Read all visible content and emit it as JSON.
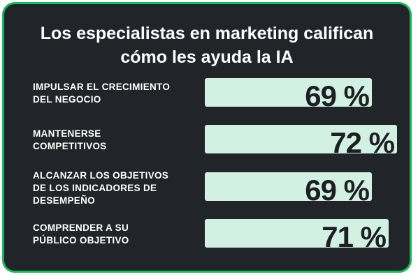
{
  "title_lines": [
    "Los especialistas en marketing califican",
    "cómo les ayuda la IA"
  ],
  "colors": {
    "background": "#212529",
    "border": "#19b95b",
    "bar": "#d2f1e3",
    "value_text": "#1d1f23"
  },
  "chart_data": {
    "type": "bar",
    "orientation": "horizontal",
    "title": "Los especialistas en marketing califican cómo les ayuda la IA",
    "categories": [
      "IMPULSAR EL CRECIMIENTO DEL NEGOCIO",
      "MANTENERSE COMPETITIVOS",
      "ALCANZAR LOS OBJETIVOS DE LOS INDICADORES DE DESEMPEÑO",
      "COMPRENDER A SU PÚBLICO OBJETIVO"
    ],
    "values": [
      69,
      72,
      69,
      71
    ],
    "unit": "%",
    "data_labels": [
      "69 %",
      "72 %",
      "69 %",
      "71 %"
    ]
  },
  "rows": [
    {
      "label_lines": [
        "IMPULSAR EL CRECIMIENTO",
        "DEL NEGOCIO"
      ],
      "value": 69,
      "display": "69 %"
    },
    {
      "label_lines": [
        "MANTENERSE",
        "COMPETITIVOS"
      ],
      "value": 72,
      "display": "72 %"
    },
    {
      "label_lines": [
        "ALCANZAR LOS OBJETIVOS",
        "DE LOS INDICADORES DE",
        "DESEMPEÑO"
      ],
      "value": 69,
      "display": "69 %"
    },
    {
      "label_lines": [
        "COMPRENDER A SU",
        "PÚBLICO OBJETIVO"
      ],
      "value": 71,
      "display": "71 %"
    }
  ]
}
